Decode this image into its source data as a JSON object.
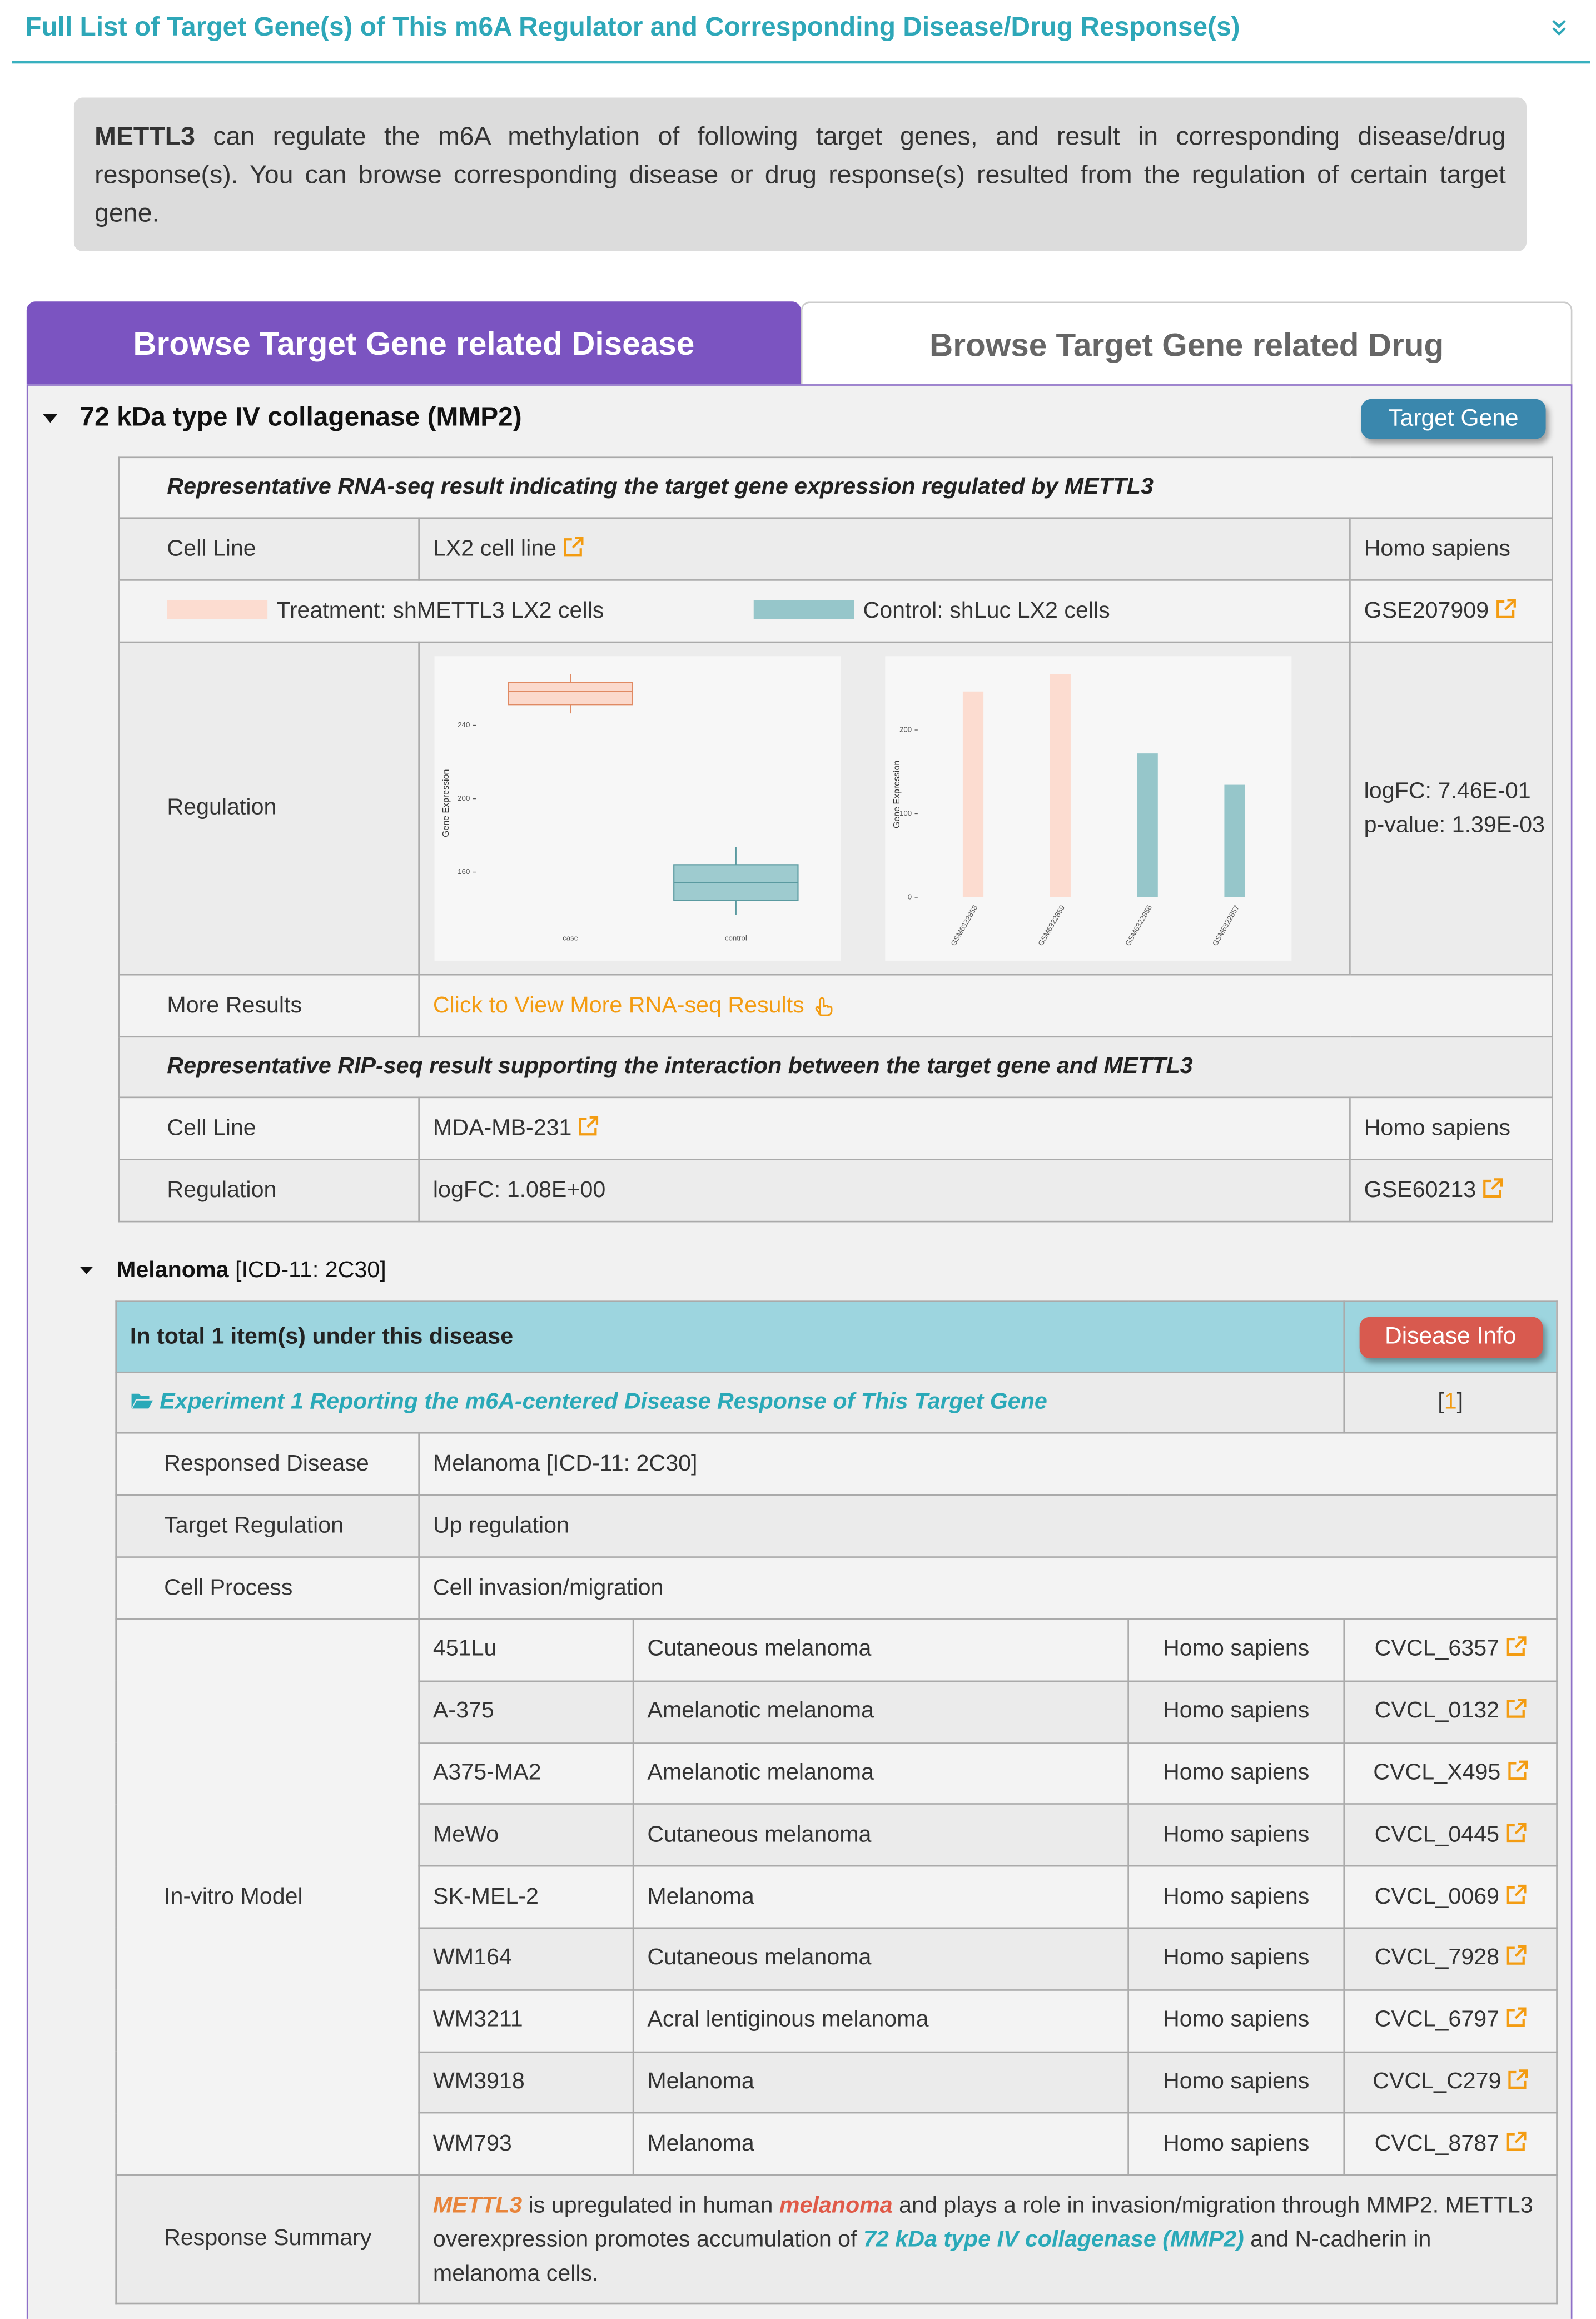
{
  "header": {
    "title": "Full List of Target Gene(s) of This m6A Regulator and Corresponding Disease/Drug Response(s)"
  },
  "intro": {
    "regulator": "METTL3",
    "text": "can regulate the m6A methylation of following target genes, and result in corresponding disease/drug response(s). You can browse corresponding disease or drug response(s) resulted from the regulation of certain target gene."
  },
  "tabs": [
    "Browse Target Gene related Disease",
    "Browse Target Gene related Drug"
  ],
  "target": {
    "name": "72 kDa type IV collagenase (MMP2)",
    "button": "Target Gene"
  },
  "rna_seq": {
    "heading": "Representative RNA-seq result indicating the target gene expression regulated by METTL3",
    "cell_line_label": "Cell Line",
    "cell_line": "LX2 cell line",
    "species": "Homo sapiens",
    "treatment": "Treatment: shMETTL3 LX2 cells",
    "control": "Control: shLuc LX2 cells",
    "dataset": "GSE207909",
    "regulation_label": "Regulation",
    "logfc": "logFC: 7.46E-01",
    "pvalue": "p-value: 1.39E-03",
    "more_label": "More Results",
    "more_link": "Click to View More RNA-seq Results"
  },
  "rip_seq": {
    "heading": "Representative RIP-seq result supporting the interaction between the target gene and METTL3",
    "cell_line_label": "Cell Line",
    "cell_line": "MDA-MB-231",
    "species": "Homo sapiens",
    "regulation_label": "Regulation",
    "regulation": "logFC: 1.08E+00",
    "dataset": "GSE60213"
  },
  "disease": {
    "name": "Melanoma",
    "icd": "[ICD-11: 2C30]",
    "total": "In total 1 item(s) under this disease",
    "button": "Disease Info",
    "experiment": "Experiment 1 Reporting the m6A-centered Disease Response of This Target Gene",
    "ref": [
      "[",
      "1",
      "]"
    ],
    "rows": [
      {
        "label": "Responsed Disease",
        "value": "Melanoma [ICD-11: 2C30]"
      },
      {
        "label": "Target Regulation",
        "value": "Up regulation"
      },
      {
        "label": "Cell Process",
        "value": "Cell invasion/migration"
      }
    ],
    "model_label": "In-vitro Model",
    "models": [
      [
        "451Lu",
        "Cutaneous melanoma",
        "Homo sapiens",
        "CVCL_6357"
      ],
      [
        "A-375",
        "Amelanotic melanoma",
        "Homo sapiens",
        "CVCL_0132"
      ],
      [
        "A375-MA2",
        "Amelanotic melanoma",
        "Homo sapiens",
        "CVCL_X495"
      ],
      [
        "MeWo",
        "Cutaneous melanoma",
        "Homo sapiens",
        "CVCL_0445"
      ],
      [
        "SK-MEL-2",
        "Melanoma",
        "Homo sapiens",
        "CVCL_0069"
      ],
      [
        "WM164",
        "Cutaneous melanoma",
        "Homo sapiens",
        "CVCL_7928"
      ],
      [
        "WM3211",
        "Acral lentiginous melanoma",
        "Homo sapiens",
        "CVCL_6797"
      ],
      [
        "WM3918",
        "Melanoma",
        "Homo sapiens",
        "CVCL_C279"
      ],
      [
        "WM793",
        "Melanoma",
        "Homo sapiens",
        "CVCL_8787"
      ]
    ],
    "summary_label": "Response Summary",
    "summary": [
      "METTL3",
      " is upregulated in human ",
      "melanoma",
      " and plays a role in invasion/migration through MMP2. METTL3 overexpression promotes accumulation of ",
      "72 kDa type IV collagenase (MMP2)",
      " and N-cadherin in melanoma cells."
    ]
  },
  "chart_data": [
    {
      "type": "box",
      "ylabel": "Gene Expression",
      "categories": [
        "case",
        "control"
      ],
      "whisker_low": [
        246.5,
        136.6
      ],
      "q1": [
        251.3,
        144.6
      ],
      "median": [
        258.6,
        154.4
      ],
      "q3": [
        263.4,
        164
      ],
      "whisker_high": [
        268,
        173.7
      ],
      "colors": [
        "#fbd9cc",
        "#9ecbcf"
      ],
      "edge_colors": [
        "#e08a63",
        "#5a9aa0"
      ],
      "ylim": [
        127,
        268
      ],
      "yticks": [
        160,
        200,
        240
      ]
    },
    {
      "type": "bar",
      "ylabel": "Gene Expression",
      "categories": [
        "GSM6322858",
        "GSM6322859",
        "GSM6322856",
        "GSM6322857"
      ],
      "values": [
        246,
        267,
        172,
        134.5
      ],
      "colors": [
        "#fcdcd0",
        "#fcdcd0",
        "#96c6ca",
        "#96c6ca"
      ],
      "ylim": [
        -21,
        267
      ],
      "yticks": [
        0,
        100,
        200
      ]
    }
  ]
}
